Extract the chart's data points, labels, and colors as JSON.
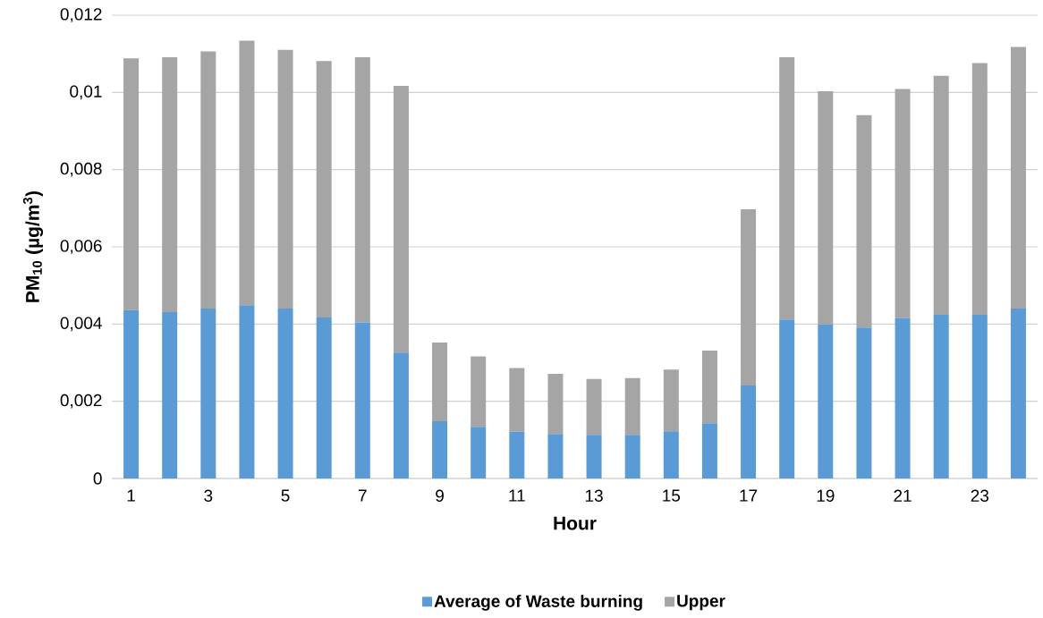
{
  "chart_data": {
    "type": "bar",
    "stacked": true,
    "xlabel": "Hour",
    "ylabel": "**PM$_{10}$ (µg/m$^{3}$)**",
    "categories": [
      "1",
      null,
      "3",
      null,
      "5",
      null,
      "7",
      null,
      "9",
      null,
      "11",
      null,
      "13",
      null,
      "15",
      null,
      "17",
      null,
      "19",
      null,
      "21",
      null,
      "23",
      null
    ],
    "series": [
      {
        "name": "Average of Waste burning",
        "color": "#5b9bd5",
        "values": [
          0.00436,
          0.00431,
          0.0044,
          0.00449,
          0.0044,
          0.00417,
          0.00404,
          0.00326,
          0.00148,
          0.00134,
          0.00121,
          0.00115,
          0.00113,
          0.00113,
          0.00122,
          0.00143,
          0.00241,
          0.00412,
          0.00399,
          0.00391,
          0.00415,
          0.00424,
          0.00424,
          0.0044
        ]
      },
      {
        "name": "Upper",
        "color": "#a5a5a5",
        "values": [
          0.00652,
          0.0066,
          0.00666,
          0.00685,
          0.0067,
          0.00664,
          0.00687,
          0.00691,
          0.00204,
          0.00182,
          0.00165,
          0.00156,
          0.00145,
          0.00147,
          0.0016,
          0.00188,
          0.00456,
          0.00679,
          0.00604,
          0.0055,
          0.00594,
          0.00619,
          0.00652,
          0.00678
        ]
      }
    ],
    "ylim": [
      0,
      0.012
    ],
    "yticks": [
      0,
      {
        "value": 0.002,
        "label": "0,002"
      },
      {
        "value": 0.004,
        "label": "0,004"
      },
      {
        "value": 0.006,
        "label": "0,006"
      },
      {
        "value": 0.008,
        "label": "0,008"
      },
      {
        "value": 0.01,
        "label": "0,01"
      },
      {
        "value": 0.012,
        "label": "0,012"
      }
    ],
    "grid": "y",
    "legend": "bottom"
  }
}
